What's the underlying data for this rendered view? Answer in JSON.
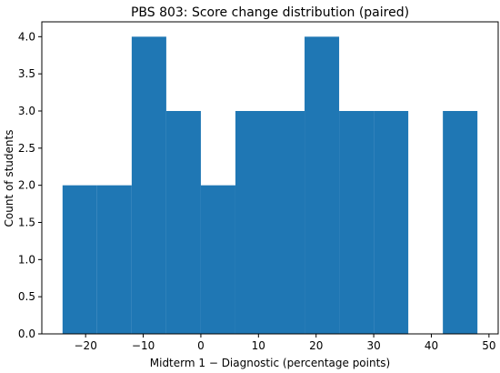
{
  "chart_data": {
    "type": "bar",
    "title": "PBS 803: Score change distribution (paired)",
    "xlabel": "Midterm 1 − Diagnostic (percentage points)",
    "ylabel": "Count of students",
    "bin_edges": [
      -24,
      -18,
      -12,
      -6,
      0,
      6,
      12,
      18,
      24,
      30,
      36,
      42,
      48
    ],
    "values": [
      2,
      2,
      4,
      3,
      2,
      3,
      3,
      4,
      3,
      3,
      0,
      3
    ],
    "xlim": [
      -27.6,
      51.6
    ],
    "ylim": [
      0,
      4.2
    ],
    "xticks": [
      -20,
      -10,
      0,
      10,
      20,
      30,
      40,
      50
    ],
    "xtick_labels": [
      "−20",
      "−10",
      "0",
      "10",
      "20",
      "30",
      "40",
      "50"
    ],
    "yticks": [
      0,
      0.5,
      1,
      1.5,
      2,
      2.5,
      3,
      3.5,
      4
    ],
    "ytick_labels": [
      "0.0",
      "0.5",
      "1.0",
      "1.5",
      "2.0",
      "2.5",
      "3.0",
      "3.5",
      "4.0"
    ],
    "bar_color": "#1f77b4",
    "grid": false,
    "legend": "none"
  }
}
